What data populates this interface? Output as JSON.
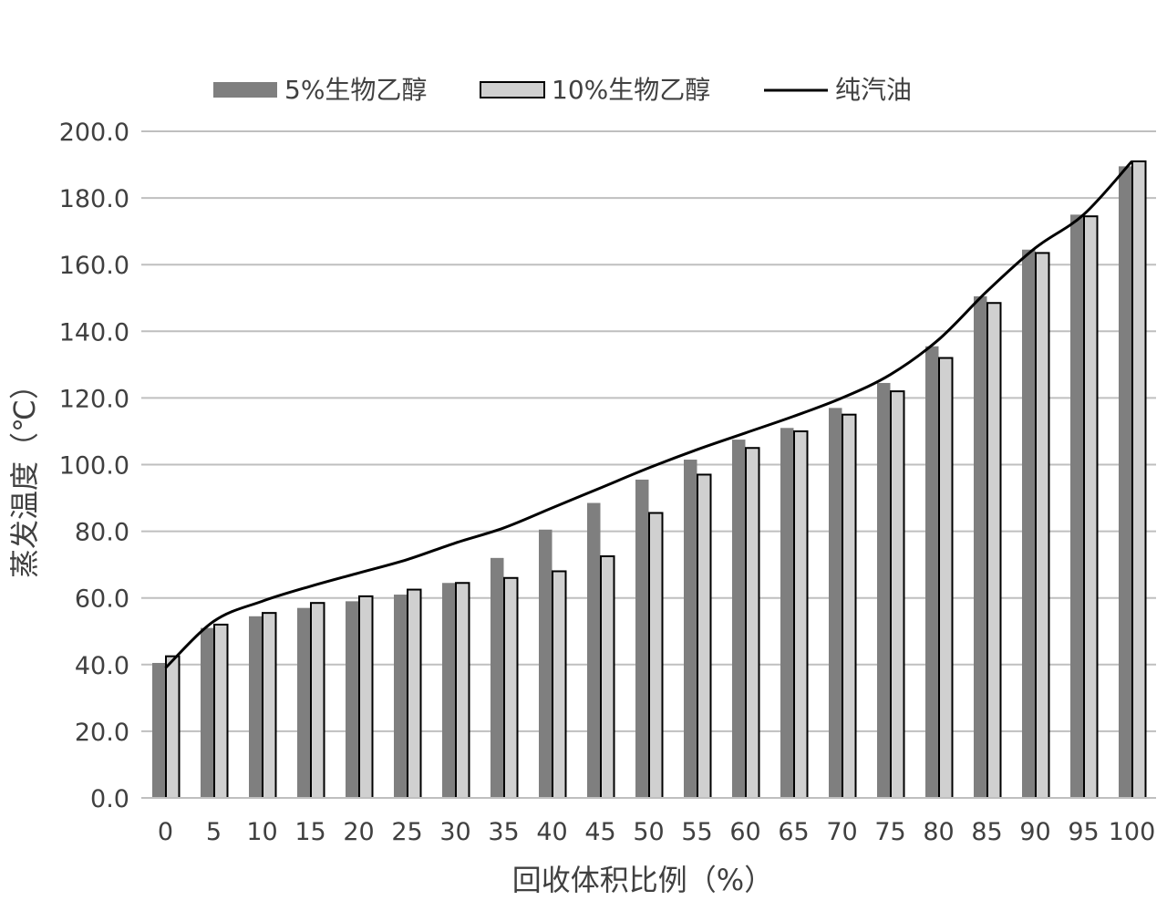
{
  "chart_data": {
    "type": "bar",
    "categories": [
      "0",
      "5",
      "10",
      "15",
      "20",
      "25",
      "30",
      "35",
      "40",
      "45",
      "50",
      "55",
      "60",
      "65",
      "70",
      "75",
      "80",
      "85",
      "90",
      "95",
      "100"
    ],
    "series": [
      {
        "name": "5%生物乙醇",
        "kind": "bar",
        "color": "#7f7f7f",
        "values": [
          40.5,
          51.0,
          54.5,
          57.0,
          59.0,
          61.0,
          64.5,
          72.0,
          80.5,
          88.5,
          95.5,
          101.5,
          107.5,
          111.0,
          117.0,
          124.5,
          135.5,
          150.5,
          164.5,
          175.0,
          189.5
        ]
      },
      {
        "name": "10%生物乙醇",
        "kind": "bar",
        "color": "#d0d0d0",
        "stroke": "#000000",
        "values": [
          42.5,
          52.0,
          55.5,
          58.5,
          60.5,
          62.5,
          64.5,
          66.0,
          68.0,
          72.5,
          85.5,
          97.0,
          105.0,
          110.0,
          115.0,
          122.0,
          132.0,
          148.5,
          163.5,
          174.5,
          191.0
        ]
      },
      {
        "name": "纯汽油",
        "kind": "line",
        "color": "#000000",
        "values": [
          39.0,
          53.0,
          59.0,
          63.5,
          67.5,
          71.5,
          76.5,
          81.0,
          87.0,
          93.0,
          99.0,
          104.5,
          109.5,
          114.5,
          120.0,
          127.0,
          137.5,
          152.0,
          165.0,
          175.0,
          191.0
        ]
      }
    ],
    "xlabel": "回收体积比例（%）",
    "ylabel": "蒸发温度（℃）",
    "ylim": [
      0,
      200
    ],
    "yticks": [
      "0.0",
      "20.0",
      "40.0",
      "60.0",
      "80.0",
      "100.0",
      "120.0",
      "140.0",
      "160.0",
      "180.0",
      "200.0"
    ],
    "grid": true,
    "legend_position": "top-center",
    "gridline_color": "#bfbfbf"
  }
}
